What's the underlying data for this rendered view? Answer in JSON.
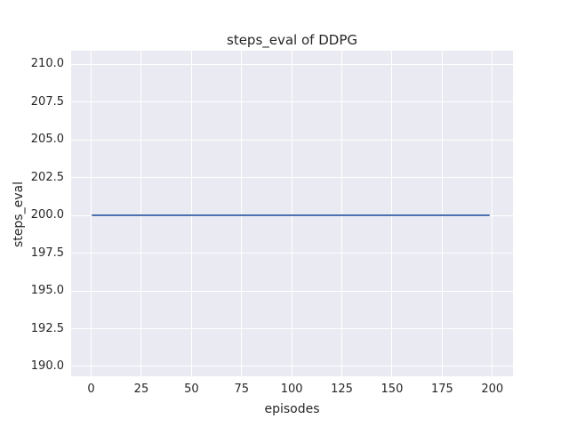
{
  "chart_data": {
    "type": "line",
    "title": "steps_eval of DDPG",
    "xlabel": "episodes",
    "ylabel": "steps_eval",
    "xlim": [
      -10,
      210.3
    ],
    "ylim": [
      189.35,
      210.9
    ],
    "xticks": [
      "0",
      "25",
      "50",
      "75",
      "100",
      "125",
      "150",
      "175",
      "200"
    ],
    "yticks": [
      "190.0",
      "192.5",
      "195.0",
      "197.5",
      "200.0",
      "202.5",
      "205.0",
      "207.5",
      "210.0"
    ],
    "grid": "on",
    "legend": "none",
    "series": [
      {
        "name": "steps_eval",
        "x": [
          0,
          199
        ],
        "y": [
          200,
          200
        ],
        "note": "constant line at 200 from episode 0 to 199"
      }
    ],
    "colors": {
      "plot_background": "#eaeaf2",
      "gridline": "#ffffff",
      "line": "#4c72b0",
      "text": "#262626",
      "figure_background": "#ffffff"
    }
  }
}
